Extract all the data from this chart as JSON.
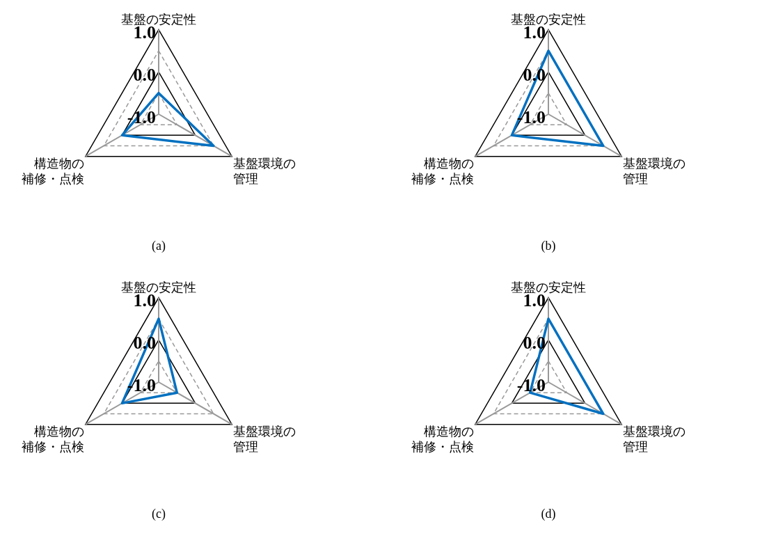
{
  "chart_data": [
    {
      "type": "radar",
      "title": "(a)",
      "categories": [
        "基盤の安定性",
        "基盤環境の管理",
        "構造物の補修・点検"
      ],
      "series": [
        {
          "color": "#0070c0",
          "values": [
            -0.5,
            0.5,
            0.0
          ]
        }
      ],
      "ylim": [
        -1,
        1
      ],
      "yticks": [
        {
          "value": -1,
          "label": "-1.0"
        },
        {
          "value": 0,
          "label": "0.0"
        },
        {
          "value": 1,
          "label": "1.0"
        }
      ],
      "grid": true
    },
    {
      "type": "radar",
      "title": "(b)",
      "categories": [
        "基盤の安定性",
        "基盤環境の管理",
        "構造物の補修・点検"
      ],
      "series": [
        {
          "color": "#0070c0",
          "values": [
            0.5,
            0.5,
            0.0
          ]
        }
      ],
      "ylim": [
        -1,
        1
      ],
      "yticks": [
        {
          "value": -1,
          "label": "-1.0"
        },
        {
          "value": 0,
          "label": "0.0"
        },
        {
          "value": 1,
          "label": "1.0"
        }
      ],
      "grid": true
    },
    {
      "type": "radar",
      "title": "(c)",
      "categories": [
        "基盤の安定性",
        "基盤環境の管理",
        "構造物の補修・点検"
      ],
      "series": [
        {
          "color": "#0070c0",
          "values": [
            0.5,
            -0.5,
            0.0
          ]
        }
      ],
      "ylim": [
        -1,
        1
      ],
      "yticks": [
        {
          "value": -1,
          "label": "-1.0"
        },
        {
          "value": 0,
          "label": "0.0"
        },
        {
          "value": 1,
          "label": "1.0"
        }
      ],
      "grid": true
    },
    {
      "type": "radar",
      "title": "(d)",
      "categories": [
        "基盤の安定性",
        "基盤環境の管理",
        "構造物の補修・点検"
      ],
      "series": [
        {
          "color": "#0070c0",
          "values": [
            0.5,
            0.5,
            -0.5
          ]
        }
      ],
      "ylim": [
        -1,
        1
      ],
      "yticks": [
        {
          "value": -1,
          "label": "-1.0"
        },
        {
          "value": 0,
          "label": "0.0"
        },
        {
          "value": 1,
          "label": "1.0"
        }
      ],
      "grid": true
    }
  ]
}
